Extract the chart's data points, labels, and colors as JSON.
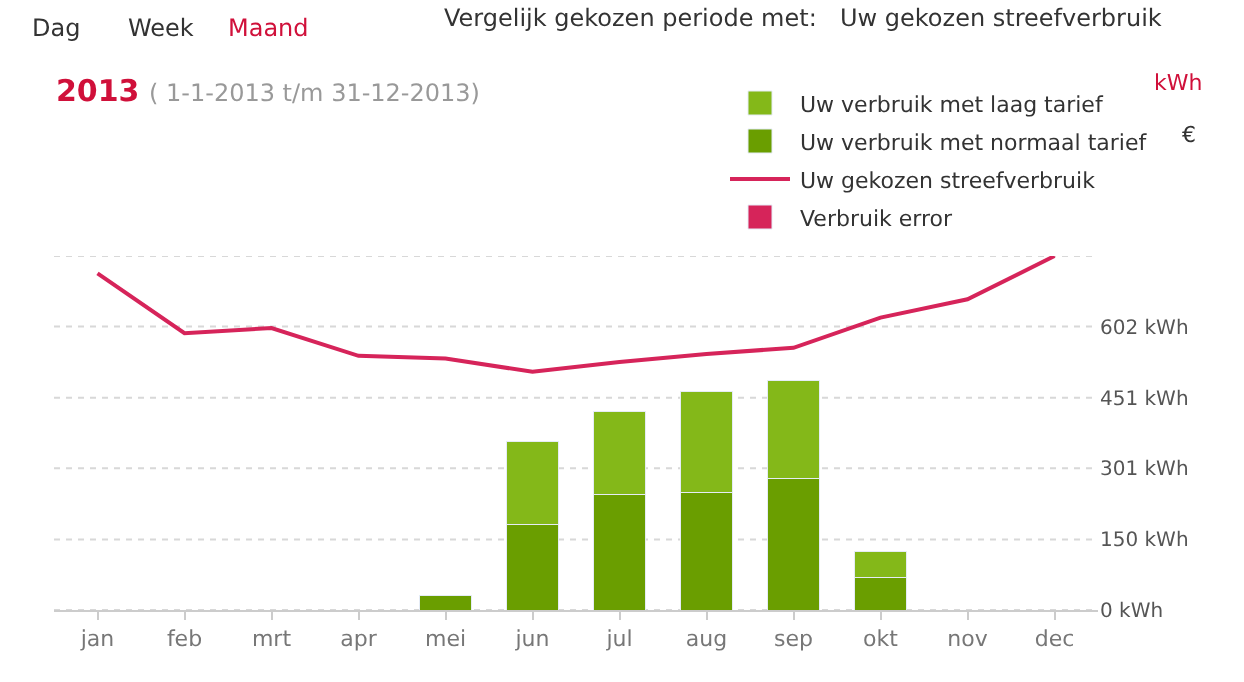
{
  "chart_data": {
    "type": "bar",
    "title": "2013",
    "subtitle": "( 1-1-2013 t/m 31-12-2013)",
    "categories": [
      "jan",
      "feb",
      "mrt",
      "apr",
      "mei",
      "jun",
      "jul",
      "aug",
      "sep",
      "okt",
      "nov",
      "dec"
    ],
    "stacked": true,
    "series": [
      {
        "name": "Uw verbruik met normaal tarief",
        "color": "#6a9e00",
        "values": [
          null,
          null,
          null,
          null,
          31,
          181,
          246,
          250,
          280,
          68,
          null,
          null
        ]
      },
      {
        "name": "Uw verbruik met laag tarief",
        "color": "#84b819",
        "values": [
          null,
          null,
          null,
          null,
          null,
          176,
          176,
          215,
          207,
          57,
          null,
          null
        ]
      },
      {
        "name": "Uw gekozen streefverbruik",
        "type": "line",
        "color": "#d6245a",
        "values": [
          715,
          588,
          599,
          540,
          534,
          506,
          527,
          544,
          557,
          621,
          660,
          752
        ]
      },
      {
        "name": "Verbruik error",
        "color": "#d6245a",
        "values": [
          null,
          null,
          null,
          null,
          null,
          null,
          null,
          null,
          null,
          null,
          null,
          null
        ]
      }
    ],
    "ylim": [
      0,
      752
    ],
    "yticks": [
      {
        "value": 0,
        "label": "0 kWh"
      },
      {
        "value": 150,
        "label": "150 kWh"
      },
      {
        "value": 301,
        "label": "301 kWh"
      },
      {
        "value": 451,
        "label": "451 kWh"
      },
      {
        "value": 602,
        "label": "602 kWh"
      },
      {
        "value": 752,
        "label": null
      }
    ],
    "grid": "y",
    "legend": "top right",
    "marker": "none",
    "annotations": [
      "Dag",
      "Week",
      "Maand",
      "Vergelijk gekozen periode met:",
      "Uw gekozen streefverbruik",
      "kWh",
      "€"
    ]
  }
}
